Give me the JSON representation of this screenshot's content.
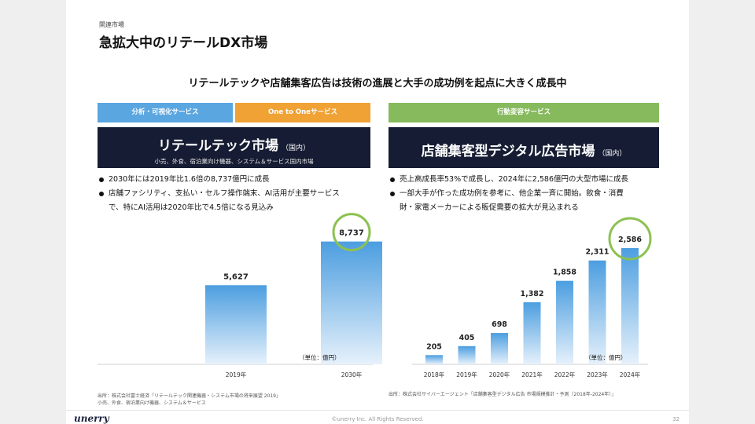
{
  "header": {
    "section_label": "関連市場",
    "title": "急拡大中のリテールDX市場",
    "headline": "リテールテックや店舗集客広告は技術の進展と大手の成功例を起点に大きく成長中"
  },
  "left": {
    "tabs": [
      "分析・可視化サービス",
      "One to Oneサービス"
    ],
    "market_title": "リテールテック市場",
    "market_scope": "（国内）",
    "market_sub": "小売、外食、宿泊業向け機器、システム＆サービス国内市場",
    "bullets": [
      "2030年には2019年比1.6倍の8,737億円に成長",
      "店舗ファシリティ、支払い・セルフ操作端末、AI活用が主要サービス",
      "で、特にAI活用は2020年比で4.5倍になる見込み"
    ],
    "unit": "（単位：億円）",
    "source_lines": [
      "出所：株式会社富士経済「リテールテック関連機器・システム市場の将来展望 2019」",
      "小売、外食、宿泊業向け機器、システム＆サービス"
    ]
  },
  "right": {
    "tabs": [
      "行動変容サービス"
    ],
    "market_title": "店舗集客型デジタル広告市場",
    "market_scope": "（国内）",
    "bullets": [
      "売上高成長率53%で成長し、2024年に2,586億円の大型市場に成長",
      "一部大手が作った成功例を参考に、他企業一斉に開始。飲食・消費",
      "財・家電メーカーによる販促需要の拡大が見込まれる"
    ],
    "unit": "（単位：億円）",
    "source_lines": [
      "出所：株式会社サイバーエージェント「店舗集客型デジタル広告 市場規模推計・予測（2018年-2024年）」"
    ]
  },
  "colors": {
    "bar_top": "#4c9ee0",
    "bar_bottom": "#e6f1fb",
    "highlight_circle": "#8cc152",
    "navy": "#151c33"
  },
  "chart_data": [
    {
      "type": "bar",
      "title": "",
      "categories": [
        "2019年",
        "2030年"
      ],
      "values": [
        5627,
        8737
      ],
      "value_labels": [
        "5,627",
        "8,737"
      ],
      "highlight_index": 1,
      "ylabel": "",
      "ylim": [
        0,
        10000
      ]
    },
    {
      "type": "bar",
      "title": "",
      "categories": [
        "2018年",
        "2019年",
        "2020年",
        "2021年",
        "2022年",
        "2023年",
        "2024年"
      ],
      "values": [
        205,
        405,
        698,
        1382,
        1858,
        2311,
        2586
      ],
      "value_labels": [
        "205",
        "405",
        "698",
        "1,382",
        "1,858",
        "2,311",
        "2,586"
      ],
      "highlight_index": 6,
      "ylabel": "",
      "ylim": [
        0,
        3000
      ]
    }
  ],
  "footer": {
    "logo": "unerry",
    "copyright": "©unerry Inc. All Rights Reserved.",
    "page": "32"
  }
}
